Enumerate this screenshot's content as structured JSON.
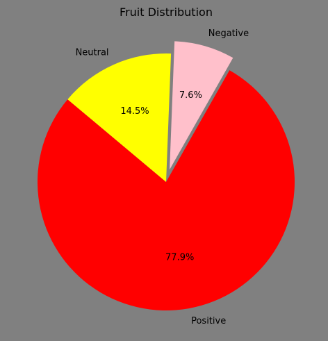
{
  "chart_data": {
    "type": "pie",
    "title": "Fruit Distribution",
    "start_angle_deg": 140,
    "direction": "counterclockwise",
    "slices": [
      {
        "label": "Positive",
        "value": 77.9,
        "pct_label": "77.9%",
        "color": "#ff0000",
        "explode": 0
      },
      {
        "label": "Negative",
        "value": 7.6,
        "pct_label": "7.6%",
        "color": "#ffc0cb",
        "explode": 0.1
      },
      {
        "label": "Neutral",
        "value": 14.5,
        "pct_label": "14.5%",
        "color": "#ffff00",
        "explode": 0
      }
    ],
    "background": "#808080"
  }
}
